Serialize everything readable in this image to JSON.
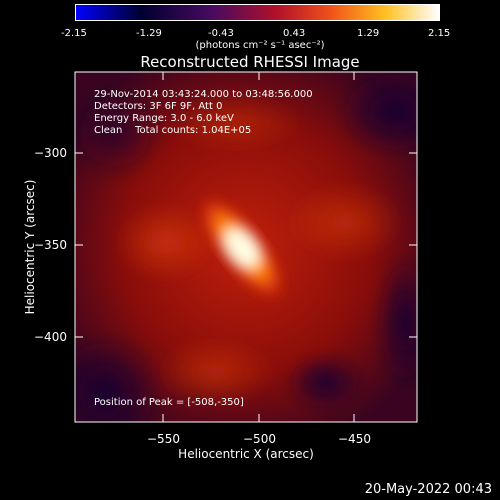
{
  "colorbar": {
    "ticks": [
      "-2.15",
      "-1.29",
      "-0.43",
      "0.43",
      "1.29",
      "2.15"
    ],
    "units": "(photons cm⁻² s⁻¹ asec⁻²)",
    "colors": [
      "#1010ff",
      "#000000",
      "#7a1a8a",
      "#e0401a",
      "#ffb000",
      "#ffffff"
    ]
  },
  "chart_data": {
    "type": "heatmap",
    "title": "Reconstructed RHESSI Image",
    "xlabel": "Heliocentric X (arcsec)",
    "ylabel": "Heliocentric Y (arcsec)",
    "xlim": [
      -597,
      -417
    ],
    "ylim": [
      -446,
      -262
    ],
    "xticks": [
      -550,
      -500,
      -450
    ],
    "yticks": [
      -300,
      -350,
      -400
    ],
    "peak": [
      -508,
      -350
    ],
    "info": {
      "line1": "29-Nov-2014 03:43:24.000 to 03:48:56.000",
      "line2": "Detectors: 3F 6F 9F, Att 0",
      "line3": "Energy Range: 3.0 - 6.0 keV",
      "line4": "Clean    Total counts: 1.04E+05",
      "peak_label": "Position of Peak = [-508,-350]"
    }
  },
  "date_stamp": "20-May-2022 00:43"
}
